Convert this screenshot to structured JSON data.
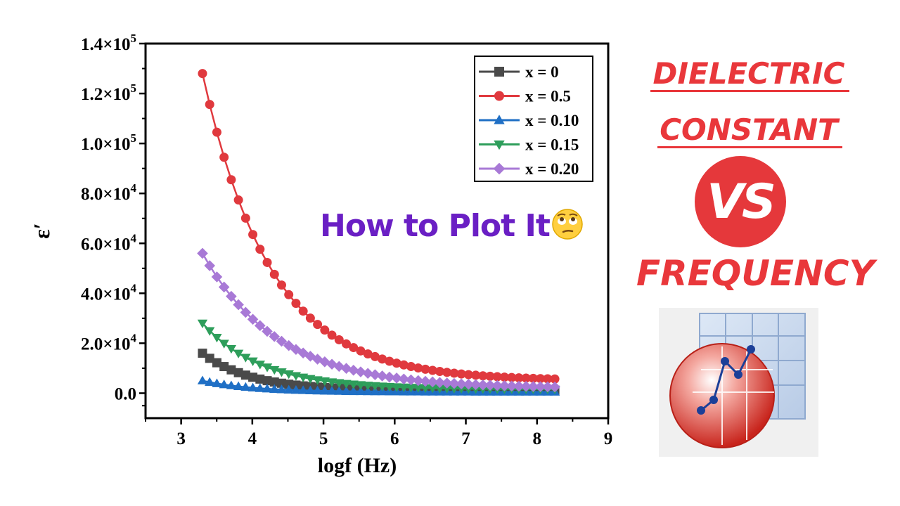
{
  "chart_data": {
    "type": "line",
    "xlabel": "logf (Hz)",
    "ylabel": "ε′",
    "xlim": [
      2.5,
      9
    ],
    "ylim": [
      -10000,
      140000
    ],
    "x_ticks": [
      "3",
      "4",
      "5",
      "6",
      "7",
      "8",
      "9"
    ],
    "y_ticks": [
      {
        "mantissa": "0.0",
        "exp": ""
      },
      {
        "mantissa": "2.0×10",
        "exp": "4"
      },
      {
        "mantissa": "4.0×10",
        "exp": "4"
      },
      {
        "mantissa": "6.0×10",
        "exp": "4"
      },
      {
        "mantissa": "8.0×10",
        "exp": "4"
      },
      {
        "mantissa": "1.0×10",
        "exp": "5"
      },
      {
        "mantissa": "1.2×10",
        "exp": "5"
      },
      {
        "mantissa": "1.4×10",
        "exp": "5"
      }
    ],
    "legend_position": "top-right",
    "x_range": [
      3.3,
      8.25
    ],
    "series": [
      {
        "name": "x = 0",
        "color": "#4a4a4a",
        "marker": "square",
        "y0": 16000,
        "y_end": 1000,
        "decay": 1.45
      },
      {
        "name": "x = 0.5",
        "color": "#e0393e",
        "marker": "circle",
        "y0": 128000,
        "y_end": 5000,
        "decay": 1.05
      },
      {
        "name": "x = 0.10",
        "color": "#1f6fc5",
        "marker": "triangle-up",
        "y0": 5000,
        "y_end": 500,
        "decay": 1.4
      },
      {
        "name": "x = 0.15",
        "color": "#2e9e5b",
        "marker": "triangle-down",
        "y0": 28000,
        "y_end": 1500,
        "decay": 1.2
      },
      {
        "name": "x = 0.20",
        "color": "#a879d6",
        "marker": "diamond",
        "y0": 56000,
        "y_end": 2000,
        "decay": 0.95
      }
    ]
  },
  "overlay_text": "How to Plot It",
  "emoji_icon": "face-with-rolling-eyes-icon",
  "title": {
    "line1": "DIELECTRIC",
    "line2": "CONSTANT",
    "vs": "VS",
    "line4": "FREQUENCY"
  },
  "logo_icon": "origin-graph-logo-icon",
  "colors": {
    "accent": "#e9373b",
    "overlay": "#6a1fc4"
  }
}
